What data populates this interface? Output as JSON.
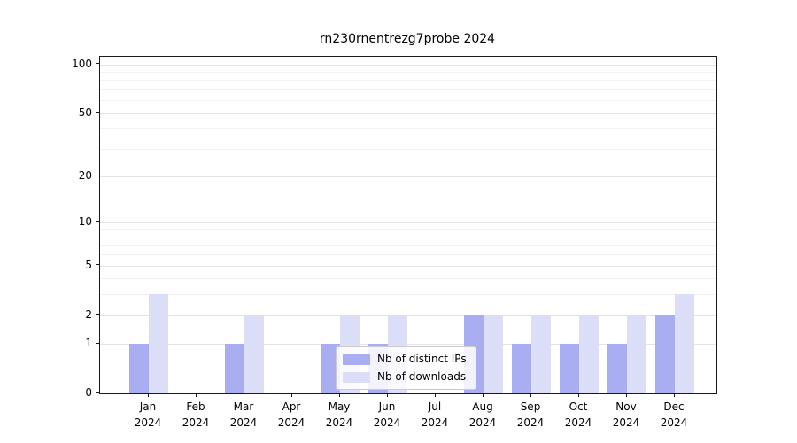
{
  "title": "rn230rnentrezg7probe 2024",
  "colors": {
    "distinct_ips": "#a9aef2",
    "downloads": "#dcdef8",
    "grid_major": "#e4e4e4",
    "grid_minor": "#f2f2f2",
    "axis": "#1a1a1a",
    "legend_border": "#cccccc"
  },
  "legend": {
    "items": [
      {
        "label": "Nb of distinct IPs",
        "color": "#a9aef2"
      },
      {
        "label": "Nb of downloads",
        "color": "#dcdef8"
      }
    ]
  },
  "y_axis": {
    "tick_labels": [
      "100",
      "50",
      "20",
      "10",
      "5",
      "2",
      "1",
      "0"
    ],
    "tick_values": [
      100,
      50,
      20,
      10,
      5,
      2,
      1,
      0
    ],
    "minor_grid_values": [
      3,
      4,
      6,
      7,
      8,
      9,
      30,
      40,
      60,
      70,
      80,
      90
    ]
  },
  "x_axis": {
    "categories": [
      {
        "month": "Jan",
        "year": "2024"
      },
      {
        "month": "Feb",
        "year": "2024"
      },
      {
        "month": "Mar",
        "year": "2024"
      },
      {
        "month": "Apr",
        "year": "2024"
      },
      {
        "month": "May",
        "year": "2024"
      },
      {
        "month": "Jun",
        "year": "2024"
      },
      {
        "month": "Jul",
        "year": "2024"
      },
      {
        "month": "Aug",
        "year": "2024"
      },
      {
        "month": "Sep",
        "year": "2024"
      },
      {
        "month": "Oct",
        "year": "2024"
      },
      {
        "month": "Nov",
        "year": "2024"
      },
      {
        "month": "Dec",
        "year": "2024"
      }
    ]
  },
  "chart_data": {
    "type": "bar",
    "title": "rn230rnentrezg7probe 2024",
    "categories": [
      "Jan 2024",
      "Feb 2024",
      "Mar 2024",
      "Apr 2024",
      "May 2024",
      "Jun 2024",
      "Jul 2024",
      "Aug 2024",
      "Sep 2024",
      "Oct 2024",
      "Nov 2024",
      "Dec 2024"
    ],
    "series": [
      {
        "name": "Nb of distinct IPs",
        "color": "#a9aef2",
        "values": [
          1,
          0,
          1,
          0,
          1,
          1,
          0,
          2,
          1,
          1,
          1,
          2
        ]
      },
      {
        "name": "Nb of downloads",
        "color": "#dcdef8",
        "values": [
          3,
          0,
          2,
          0,
          2,
          2,
          0,
          2,
          2,
          2,
          2,
          3
        ]
      }
    ],
    "xlabel": "",
    "ylabel": "",
    "yscale": "log1p",
    "ylim": [
      0,
      111
    ],
    "yticks": [
      0,
      1,
      2,
      5,
      10,
      20,
      50,
      100
    ],
    "grid": true,
    "legend_position": "inside plot, lower center"
  }
}
